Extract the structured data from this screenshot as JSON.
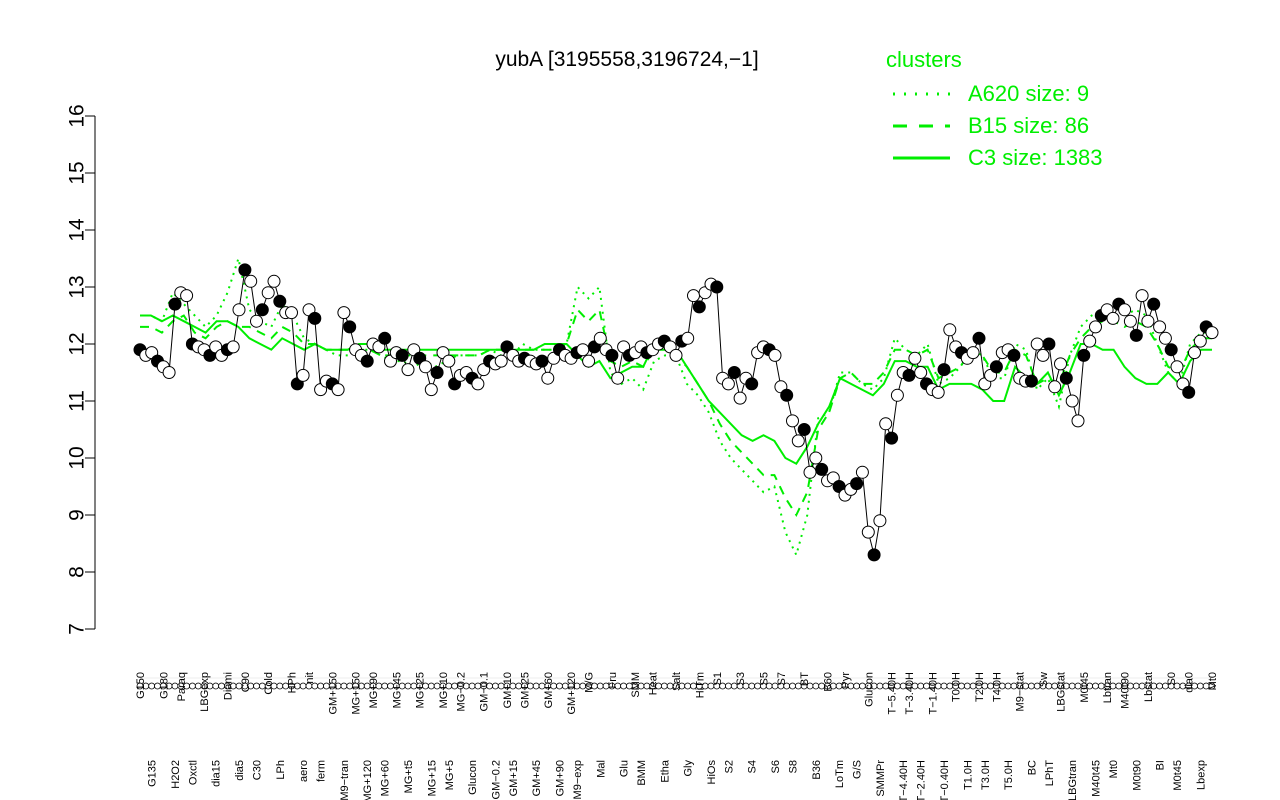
{
  "chart_data": {
    "type": "line",
    "title": "yubA [3195558,3196724,−1]",
    "xlabel": "",
    "ylabel": "",
    "ylim": [
      7,
      16
    ],
    "yticks": [
      "7",
      "8",
      "9",
      "10",
      "11",
      "12",
      "13",
      "14",
      "15",
      "16"
    ],
    "grid": false,
    "legend": {
      "title": "clusters",
      "placement": "top-right",
      "items": [
        "A620 size: 9",
        "B15 size: 86",
        "C3 size: 1383"
      ]
    },
    "series_colors": {
      "line": "#00ee00",
      "marker_edge": "#000000"
    },
    "x_labels_upper": [
      "G150",
      "G135",
      "G180",
      "H2O2",
      "Paraq",
      "Oxctl",
      "LBGexp",
      "dia15",
      "Diami",
      "dia5",
      "C90",
      "C30",
      "Cold",
      "LPh",
      "HPh",
      "aero",
      "nit",
      "ferm",
      "GM+150",
      "M9−tran",
      "MG+150",
      "MG+120",
      "MG+90",
      "MG+60",
      "MG+45",
      "MG+t5",
      "MG+25",
      "MG+15",
      "MG+10",
      "MG+5",
      "MG−0.2",
      "Glucon",
      "GM−0.1",
      "GM−0.2",
      "GM+10",
      "GM+15",
      "GM+25",
      "GM+45",
      "GM+60",
      "GM+90",
      "GM+120",
      "M9−exp",
      "M/G",
      "Mal",
      "Fru",
      "Glu",
      "SMM",
      "BMM",
      "Heat",
      "Etha",
      "Salt",
      "Gly",
      "HiTm",
      "HiOs",
      "S1",
      "S2",
      "S3",
      "S4",
      "S5",
      "S6",
      "S7",
      "S8",
      "BT",
      "B36",
      "B60",
      "LoTm",
      "Pyr",
      "G/S",
      "Glucon",
      "SMMPr",
      "T−5.40H",
      "T−4.40H",
      "T−3.40H",
      "T−2.40H",
      "T−1.40H",
      "T−0.40H",
      "T0.0H",
      "T1.0H",
      "T2.0H",
      "T3.0H",
      "T4.0H",
      "T5.0H",
      "M9−stat",
      "BC",
      "Sw",
      "LPhT",
      "LBGstat",
      "LBGtran",
      "M0t45",
      "M40t45",
      "Lbtran",
      "Mt0",
      "M40t90",
      "M0t90",
      "Lbstat",
      "BI",
      "S0",
      "M0t45",
      "dia0",
      "Lbexp",
      "Mt0"
    ],
    "points": [
      {
        "x": 1,
        "y": 11.9
      },
      {
        "x": 2,
        "y": 11.8
      },
      {
        "x": 3,
        "y": 11.85
      },
      {
        "x": 4,
        "y": 11.7
      },
      {
        "x": 5,
        "y": 11.6
      },
      {
        "x": 6,
        "y": 11.5
      },
      {
        "x": 7,
        "y": 12.7
      },
      {
        "x": 8,
        "y": 12.9
      },
      {
        "x": 9,
        "y": 12.85
      },
      {
        "x": 10,
        "y": 12.0
      },
      {
        "x": 11,
        "y": 11.95
      },
      {
        "x": 12,
        "y": 11.9
      },
      {
        "x": 13,
        "y": 11.8
      },
      {
        "x": 14,
        "y": 11.95
      },
      {
        "x": 15,
        "y": 11.8
      },
      {
        "x": 16,
        "y": 11.9
      },
      {
        "x": 17,
        "y": 11.95
      },
      {
        "x": 18,
        "y": 12.6
      },
      {
        "x": 19,
        "y": 13.3
      },
      {
        "x": 20,
        "y": 13.1
      },
      {
        "x": 21,
        "y": 12.4
      },
      {
        "x": 22,
        "y": 12.6
      },
      {
        "x": 23,
        "y": 12.9
      },
      {
        "x": 24,
        "y": 13.1
      },
      {
        "x": 25,
        "y": 12.75
      },
      {
        "x": 26,
        "y": 12.55
      },
      {
        "x": 27,
        "y": 12.55
      },
      {
        "x": 28,
        "y": 11.3
      },
      {
        "x": 29,
        "y": 11.45
      },
      {
        "x": 30,
        "y": 12.6
      },
      {
        "x": 31,
        "y": 12.45
      },
      {
        "x": 32,
        "y": 11.2
      },
      {
        "x": 33,
        "y": 11.35
      },
      {
        "x": 34,
        "y": 11.3
      },
      {
        "x": 35,
        "y": 11.2
      },
      {
        "x": 36,
        "y": 12.55
      },
      {
        "x": 37,
        "y": 12.3
      },
      {
        "x": 38,
        "y": 11.9
      },
      {
        "x": 39,
        "y": 11.8
      },
      {
        "x": 40,
        "y": 11.7
      },
      {
        "x": 41,
        "y": 12.0
      },
      {
        "x": 42,
        "y": 11.95
      },
      {
        "x": 43,
        "y": 12.1
      },
      {
        "x": 44,
        "y": 11.7
      },
      {
        "x": 45,
        "y": 11.85
      },
      {
        "x": 46,
        "y": 11.8
      },
      {
        "x": 47,
        "y": 11.55
      },
      {
        "x": 48,
        "y": 11.9
      },
      {
        "x": 49,
        "y": 11.75
      },
      {
        "x": 50,
        "y": 11.6
      },
      {
        "x": 51,
        "y": 11.2
      },
      {
        "x": 52,
        "y": 11.5
      },
      {
        "x": 53,
        "y": 11.85
      },
      {
        "x": 54,
        "y": 11.7
      },
      {
        "x": 55,
        "y": 11.3
      },
      {
        "x": 56,
        "y": 11.45
      },
      {
        "x": 57,
        "y": 11.5
      },
      {
        "x": 58,
        "y": 11.4
      },
      {
        "x": 59,
        "y": 11.3
      },
      {
        "x": 60,
        "y": 11.55
      },
      {
        "x": 61,
        "y": 11.7
      },
      {
        "x": 62,
        "y": 11.65
      },
      {
        "x": 63,
        "y": 11.7
      },
      {
        "x": 64,
        "y": 11.95
      },
      {
        "x": 65,
        "y": 11.8
      },
      {
        "x": 66,
        "y": 11.7
      },
      {
        "x": 67,
        "y": 11.75
      },
      {
        "x": 68,
        "y": 11.7
      },
      {
        "x": 69,
        "y": 11.65
      },
      {
        "x": 70,
        "y": 11.7
      },
      {
        "x": 71,
        "y": 11.4
      },
      {
        "x": 72,
        "y": 11.75
      },
      {
        "x": 73,
        "y": 11.9
      },
      {
        "x": 74,
        "y": 11.8
      },
      {
        "x": 75,
        "y": 11.75
      },
      {
        "x": 76,
        "y": 11.85
      },
      {
        "x": 77,
        "y": 11.9
      },
      {
        "x": 78,
        "y": 11.7
      },
      {
        "x": 79,
        "y": 11.95
      },
      {
        "x": 80,
        "y": 12.1
      },
      {
        "x": 81,
        "y": 11.9
      },
      {
        "x": 82,
        "y": 11.8
      },
      {
        "x": 83,
        "y": 11.4
      },
      {
        "x": 84,
        "y": 11.95
      },
      {
        "x": 85,
        "y": 11.8
      },
      {
        "x": 86,
        "y": 11.85
      },
      {
        "x": 87,
        "y": 11.95
      },
      {
        "x": 88,
        "y": 11.85
      },
      {
        "x": 89,
        "y": 11.9
      },
      {
        "x": 90,
        "y": 12.0
      },
      {
        "x": 91,
        "y": 12.05
      },
      {
        "x": 92,
        "y": 11.95
      },
      {
        "x": 93,
        "y": 11.8
      },
      {
        "x": 94,
        "y": 12.05
      },
      {
        "x": 95,
        "y": 12.1
      },
      {
        "x": 96,
        "y": 12.85
      },
      {
        "x": 97,
        "y": 12.65
      },
      {
        "x": 98,
        "y": 12.9
      },
      {
        "x": 99,
        "y": 13.05
      },
      {
        "x": 100,
        "y": 13.0
      },
      {
        "x": 101,
        "y": 11.4
      },
      {
        "x": 102,
        "y": 11.3
      },
      {
        "x": 103,
        "y": 11.5
      },
      {
        "x": 104,
        "y": 11.05
      },
      {
        "x": 105,
        "y": 11.4
      },
      {
        "x": 106,
        "y": 11.3
      },
      {
        "x": 107,
        "y": 11.85
      },
      {
        "x": 108,
        "y": 11.95
      },
      {
        "x": 109,
        "y": 11.9
      },
      {
        "x": 110,
        "y": 11.8
      },
      {
        "x": 111,
        "y": 11.25
      },
      {
        "x": 112,
        "y": 11.1
      },
      {
        "x": 113,
        "y": 10.65
      },
      {
        "x": 114,
        "y": 10.3
      },
      {
        "x": 115,
        "y": 10.5
      },
      {
        "x": 116,
        "y": 9.75
      },
      {
        "x": 117,
        "y": 10.0
      },
      {
        "x": 118,
        "y": 9.8
      },
      {
        "x": 119,
        "y": 9.6
      },
      {
        "x": 120,
        "y": 9.65
      },
      {
        "x": 121,
        "y": 9.5
      },
      {
        "x": 122,
        "y": 9.35
      },
      {
        "x": 123,
        "y": 9.45
      },
      {
        "x": 124,
        "y": 9.55
      },
      {
        "x": 125,
        "y": 9.75
      },
      {
        "x": 126,
        "y": 8.7
      },
      {
        "x": 127,
        "y": 8.3
      },
      {
        "x": 128,
        "y": 8.9
      },
      {
        "x": 129,
        "y": 10.6
      },
      {
        "x": 130,
        "y": 10.35
      },
      {
        "x": 131,
        "y": 11.1
      },
      {
        "x": 132,
        "y": 11.5
      },
      {
        "x": 133,
        "y": 11.45
      },
      {
        "x": 134,
        "y": 11.75
      },
      {
        "x": 135,
        "y": 11.5
      },
      {
        "x": 136,
        "y": 11.3
      },
      {
        "x": 137,
        "y": 11.2
      },
      {
        "x": 138,
        "y": 11.15
      },
      {
        "x": 139,
        "y": 11.55
      },
      {
        "x": 140,
        "y": 12.25
      },
      {
        "x": 141,
        "y": 11.95
      },
      {
        "x": 142,
        "y": 11.85
      },
      {
        "x": 143,
        "y": 11.75
      },
      {
        "x": 144,
        "y": 11.85
      },
      {
        "x": 145,
        "y": 12.1
      },
      {
        "x": 146,
        "y": 11.3
      },
      {
        "x": 147,
        "y": 11.45
      },
      {
        "x": 148,
        "y": 11.6
      },
      {
        "x": 149,
        "y": 11.85
      },
      {
        "x": 150,
        "y": 11.9
      },
      {
        "x": 151,
        "y": 11.8
      },
      {
        "x": 152,
        "y": 11.4
      },
      {
        "x": 153,
        "y": 11.35
      },
      {
        "x": 154,
        "y": 11.35
      },
      {
        "x": 155,
        "y": 12.0
      },
      {
        "x": 156,
        "y": 11.8
      },
      {
        "x": 157,
        "y": 12.0
      },
      {
        "x": 158,
        "y": 11.25
      },
      {
        "x": 159,
        "y": 11.65
      },
      {
        "x": 160,
        "y": 11.4
      },
      {
        "x": 161,
        "y": 11.0
      },
      {
        "x": 162,
        "y": 10.65
      },
      {
        "x": 163,
        "y": 11.8
      },
      {
        "x": 164,
        "y": 12.05
      },
      {
        "x": 165,
        "y": 12.3
      },
      {
        "x": 166,
        "y": 12.5
      },
      {
        "x": 167,
        "y": 12.6
      },
      {
        "x": 168,
        "y": 12.45
      },
      {
        "x": 169,
        "y": 12.7
      },
      {
        "x": 170,
        "y": 12.6
      },
      {
        "x": 171,
        "y": 12.4
      },
      {
        "x": 172,
        "y": 12.15
      },
      {
        "x": 173,
        "y": 12.85
      },
      {
        "x": 174,
        "y": 12.4
      },
      {
        "x": 175,
        "y": 12.7
      },
      {
        "x": 176,
        "y": 12.3
      },
      {
        "x": 177,
        "y": 12.1
      },
      {
        "x": 178,
        "y": 11.9
      },
      {
        "x": 179,
        "y": 11.6
      },
      {
        "x": 180,
        "y": 11.3
      },
      {
        "x": 181,
        "y": 11.15
      },
      {
        "x": 182,
        "y": 11.85
      },
      {
        "x": 183,
        "y": 12.05
      },
      {
        "x": 184,
        "y": 12.3
      },
      {
        "x": 185,
        "y": 12.2
      }
    ],
    "cluster_lines": [
      {
        "name": "A620 size: 9",
        "style": "dotted",
        "values": [
          12.5,
          12.5,
          12.4,
          12.9,
          12.7,
          12.5,
          12.3,
          12.5,
          12.9,
          13.5,
          12.6,
          12.4,
          12.3,
          12.7,
          12.5,
          12.1,
          12.0,
          11.9,
          11.8,
          11.8,
          11.9,
          11.9,
          11.8,
          11.7,
          11.7,
          11.6,
          11.7,
          11.6,
          11.7,
          11.8,
          11.8,
          11.8,
          11.9,
          11.8,
          11.8,
          12.0,
          11.9,
          11.9,
          11.9,
          12.0,
          13.0,
          12.8,
          13.0,
          11.5,
          11.3,
          11.4,
          11.2,
          11.7,
          11.8,
          11.8,
          11.3,
          11.1,
          10.8,
          10.3,
          10.0,
          9.8,
          9.6,
          9.4,
          9.5,
          8.7,
          8.3,
          9.0,
          10.7,
          10.8,
          11.5,
          11.5,
          11.3,
          11.2,
          11.4,
          12.1,
          11.9,
          11.8,
          12.0,
          11.3,
          11.4,
          11.6,
          11.9,
          11.8,
          11.4,
          11.4,
          12.0,
          11.9,
          11.2,
          11.4,
          10.9,
          11.8,
          12.3,
          12.5,
          12.6,
          12.7,
          12.5,
          12.6,
          12.5,
          12.0,
          11.5,
          11.3,
          12.0,
          12.2,
          12.2
        ]
      },
      {
        "name": "B15 size: 86",
        "style": "dashed",
        "values": [
          12.3,
          12.3,
          12.2,
          12.4,
          12.5,
          12.2,
          12.1,
          12.3,
          12.4,
          12.3,
          12.3,
          12.2,
          12.1,
          12.3,
          12.2,
          12.0,
          12.0,
          11.9,
          11.9,
          11.9,
          11.9,
          11.9,
          11.8,
          11.8,
          11.8,
          11.8,
          11.8,
          11.8,
          11.8,
          11.8,
          11.8,
          11.8,
          11.9,
          11.9,
          11.8,
          11.9,
          11.9,
          11.9,
          11.9,
          12.0,
          12.6,
          12.4,
          12.6,
          11.7,
          11.6,
          11.7,
          11.6,
          11.9,
          11.9,
          11.8,
          11.6,
          11.3,
          11.0,
          10.6,
          10.3,
          10.1,
          9.9,
          9.7,
          9.7,
          9.3,
          9.0,
          9.4,
          10.5,
          10.8,
          11.4,
          11.5,
          11.3,
          11.3,
          11.5,
          11.9,
          11.9,
          11.8,
          11.9,
          11.4,
          11.5,
          11.6,
          11.9,
          11.8,
          11.5,
          11.5,
          11.9,
          11.8,
          11.3,
          11.4,
          11.3,
          11.8,
          12.1,
          12.3,
          12.4,
          12.4,
          12.3,
          12.4,
          12.3,
          12.0,
          11.6,
          11.5,
          11.9,
          12.1,
          12.1
        ]
      },
      {
        "name": "C3 size: 1383",
        "style": "solid",
        "values": [
          12.5,
          12.5,
          12.4,
          12.5,
          12.4,
          12.3,
          12.2,
          12.4,
          12.4,
          12.3,
          12.1,
          12.0,
          11.9,
          12.1,
          12.0,
          11.9,
          12.0,
          11.9,
          11.9,
          11.9,
          12.0,
          12.0,
          11.9,
          11.9,
          11.9,
          11.9,
          11.9,
          11.9,
          11.9,
          11.9,
          11.9,
          11.9,
          11.9,
          11.9,
          11.9,
          11.9,
          11.9,
          12.0,
          12.0,
          12.0,
          11.8,
          11.6,
          11.7,
          11.4,
          11.5,
          11.6,
          11.6,
          12.0,
          12.0,
          11.9,
          11.6,
          11.3,
          11.0,
          10.8,
          10.6,
          10.4,
          10.3,
          10.4,
          10.3,
          10.0,
          9.9,
          10.2,
          10.6,
          10.9,
          11.4,
          11.3,
          11.2,
          11.1,
          11.3,
          11.7,
          11.7,
          11.6,
          11.6,
          11.2,
          11.3,
          11.3,
          11.3,
          11.2,
          11.0,
          11.0,
          11.6,
          11.4,
          11.3,
          11.5,
          11.1,
          11.5,
          12.0,
          12.0,
          11.9,
          11.9,
          11.6,
          11.4,
          11.3,
          11.3,
          11.5,
          11.3,
          11.7,
          11.9,
          11.9
        ]
      }
    ]
  }
}
